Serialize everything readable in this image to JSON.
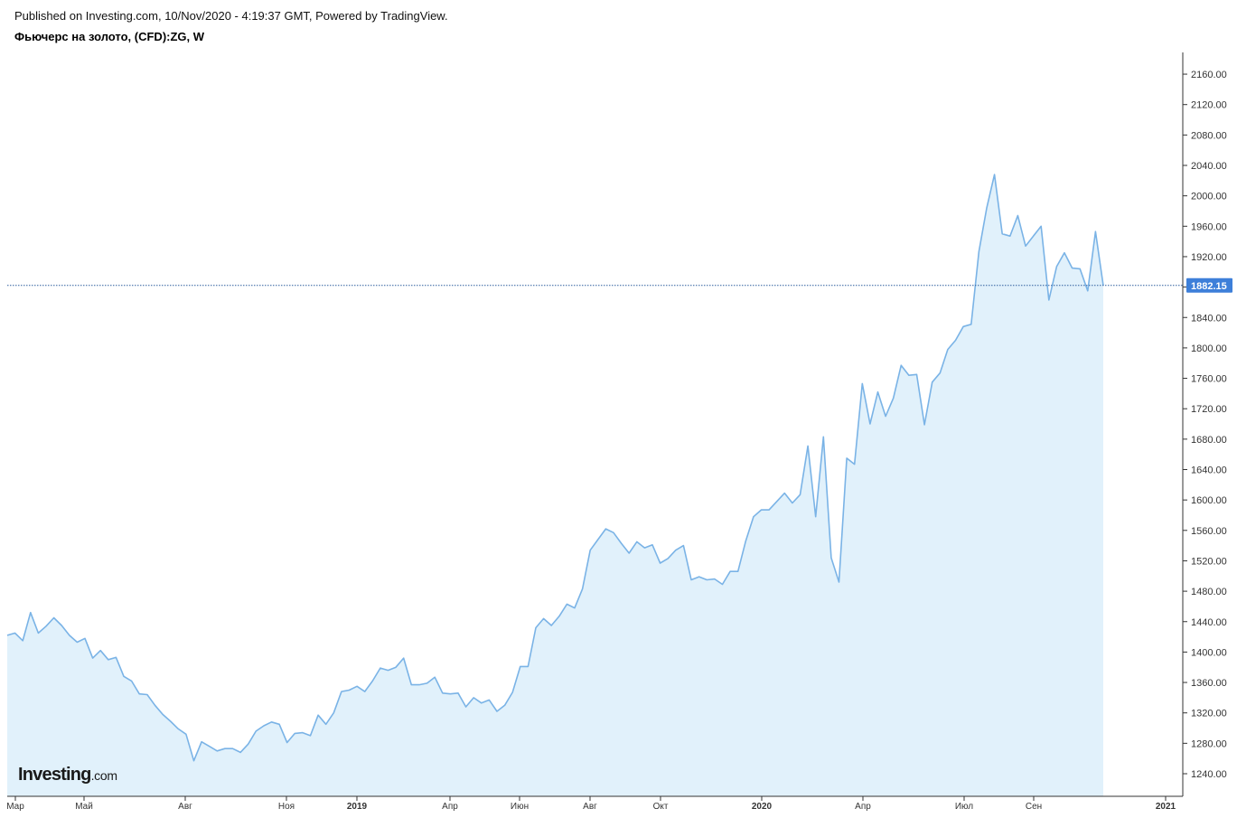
{
  "header": {
    "published": "Published on Investing.com, 10/Nov/2020 - 4:19:37 GMT, Powered by TradingView.",
    "title": "Фьючерс на золото, (CFD):ZG, W"
  },
  "logo": {
    "brand": "Investing",
    "suffix": ".com"
  },
  "colors": {
    "line": "#7ab3e6",
    "fill": "#e1f1fb",
    "axis": "#333333",
    "price_tag": "#3d7fd9"
  },
  "chart_data": {
    "type": "area",
    "title": "Фьючерс на золото, (CFD):ZG, W",
    "ylim": [
      1200,
      2180
    ],
    "y_ticks": [
      1240,
      1280,
      1320,
      1360,
      1400,
      1440,
      1480,
      1520,
      1560,
      1600,
      1640,
      1680,
      1720,
      1760,
      1800,
      1840,
      1880,
      1920,
      1960,
      2000,
      2040,
      2080,
      2120,
      2160
    ],
    "y_tick_labels": [
      "1240.00",
      "1280.00",
      "1320.00",
      "1360.00",
      "1400.00",
      "1440.00",
      "1480.00",
      "1520.00",
      "1560.00",
      "1600.00",
      "1640.00",
      "1680.00",
      "1720.00",
      "1760.00",
      "1800.00",
      "1840.00",
      "1880.00",
      "1920.00",
      "1960.00",
      "2000.00",
      "2040.00",
      "2080.00",
      "2120.00",
      "2160.00"
    ],
    "x_ticks": [
      {
        "label": "Мар",
        "date": "2018-03-01",
        "bold": false
      },
      {
        "label": "Май",
        "date": "2018-05-01",
        "bold": false
      },
      {
        "label": "Авг",
        "date": "2018-08-01",
        "bold": false
      },
      {
        "label": "Ноя",
        "date": "2018-11-01",
        "bold": false
      },
      {
        "label": "2019",
        "date": "2019-01-01",
        "bold": true
      },
      {
        "label": "Апр",
        "date": "2019-04-01",
        "bold": false
      },
      {
        "label": "Июн",
        "date": "2019-06-01",
        "bold": false
      },
      {
        "label": "Авг",
        "date": "2019-08-01",
        "bold": false
      },
      {
        "label": "Окт",
        "date": "2019-10-01",
        "bold": false
      },
      {
        "label": "2020",
        "date": "2020-01-01",
        "bold": true
      },
      {
        "label": "Апр",
        "date": "2020-04-01",
        "bold": false
      },
      {
        "label": "Июл",
        "date": "2020-07-01",
        "bold": false
      },
      {
        "label": "Сен",
        "date": "2020-09-01",
        "bold": false
      },
      {
        "label": "2021",
        "date": "2021-01-01",
        "bold": true
      }
    ],
    "x_start": "2018-02-26",
    "last_price": 1882.15,
    "last_price_label": "1882.15",
    "series": [
      {
        "frequency": "weekly",
        "values": [
          1422,
          1425,
          1415,
          1452,
          1425,
          1434,
          1445,
          1435,
          1422,
          1413,
          1418,
          1392,
          1402,
          1390,
          1393,
          1368,
          1362,
          1345,
          1344,
          1330,
          1318,
          1309,
          1299,
          1292,
          1257,
          1282,
          1276,
          1270,
          1273,
          1273,
          1268,
          1279,
          1296,
          1303,
          1308,
          1305,
          1281,
          1293,
          1294,
          1290,
          1317,
          1305,
          1320,
          1348,
          1350,
          1355,
          1348,
          1362,
          1379,
          1376,
          1380,
          1392,
          1357,
          1357,
          1359,
          1367,
          1346,
          1345,
          1346,
          1328,
          1340,
          1333,
          1337,
          1322,
          1330,
          1347,
          1381,
          1381,
          1432,
          1444,
          1435,
          1447,
          1463,
          1458,
          1483,
          1534,
          1548,
          1562,
          1557,
          1543,
          1530,
          1545,
          1537,
          1541,
          1517,
          1523,
          1534,
          1540,
          1495,
          1499,
          1495,
          1496,
          1489,
          1506,
          1506,
          1546,
          1578,
          1587,
          1587,
          1598,
          1609,
          1596,
          1607,
          1671,
          1578,
          1683,
          1524,
          1492,
          1655,
          1647,
          1753,
          1700,
          1742,
          1710,
          1734,
          1777,
          1764,
          1765,
          1699,
          1755,
          1767,
          1798,
          1810,
          1828,
          1831,
          1927,
          1984,
          2028,
          1950,
          1947,
          1974,
          1934,
          1947,
          1960,
          1863,
          1907,
          1925,
          1905,
          1904,
          1875,
          1953,
          1882
        ]
      }
    ]
  }
}
